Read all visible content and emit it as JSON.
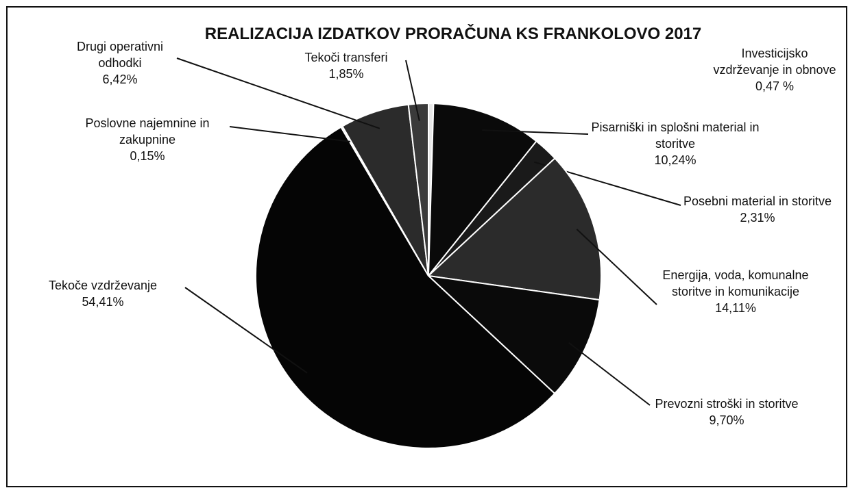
{
  "chart_data": {
    "type": "pie",
    "title": "REALIZACIJA IZDATKOV PRORAČUNA KS FRANKOLOVO 2017",
    "categories": [
      "Investicijsko vzdrževanje in obnove",
      "Pisarniški in splošni material in storitve",
      "Posebni material in storitve",
      "Energija, voda, komunalne storitve in komunikacije",
      "Prevozni stroški in storitve",
      "Tekoče vzdrževanje",
      "Poslovne najemnine in zakupnine",
      "Drugi operativni odhodki",
      "Tekoči transferi"
    ],
    "values": [
      0.47,
      10.24,
      2.31,
      14.11,
      9.7,
      54.41,
      0.15,
      6.42,
      1.85
    ],
    "value_labels": [
      "0,47 %",
      "10,24%",
      "2,31%",
      "14,11%",
      "9,70%",
      "54,41%",
      "0,15%",
      "6,42%",
      "1,85%"
    ],
    "colors": [
      "#e8e8e8",
      "#0a0a0a",
      "#1a1a1a",
      "#2b2b2b",
      "#0a0a0a",
      "#050505",
      "#cccccc",
      "#2b2b2b",
      "#3a3a3a"
    ]
  }
}
